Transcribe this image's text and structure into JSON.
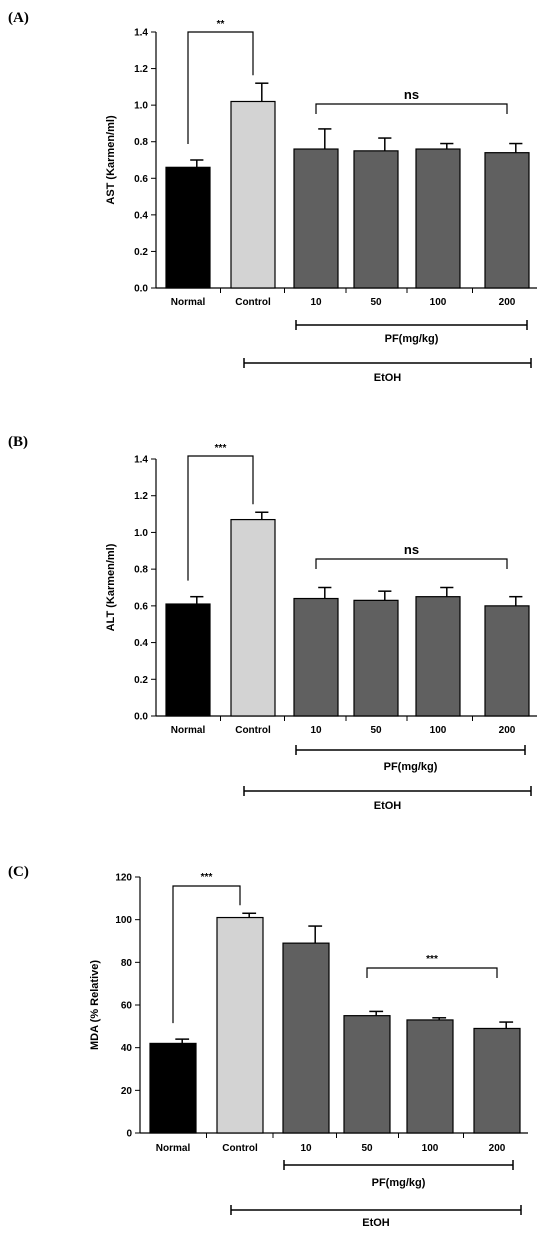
{
  "chart_data": [
    {
      "panel": "(A)",
      "type": "bar",
      "ylabel": "AST (Karmen/ml)",
      "ylim": [
        0,
        1.4
      ],
      "yticks": [
        "0.0",
        "0.2",
        "0.4",
        "0.6",
        "0.8",
        "1.0",
        "1.2",
        "1.4"
      ],
      "categories": [
        "Normal",
        "Control",
        "10",
        "50",
        "100",
        "200"
      ],
      "values": [
        0.66,
        1.02,
        0.76,
        0.75,
        0.76,
        0.74
      ],
      "errors": [
        0.04,
        0.1,
        0.11,
        0.07,
        0.03,
        0.05
      ],
      "colors": [
        "#000000",
        "#d3d3d3",
        "#606060",
        "#606060",
        "#606060",
        "#606060"
      ],
      "comparisons": [
        {
          "from": 0,
          "to": 1,
          "label": "**"
        },
        {
          "from": 2,
          "to": 5,
          "label": "ns"
        }
      ],
      "groups": [
        {
          "label": "PF(mg/kg)",
          "from": 2,
          "to": 5
        },
        {
          "label": "EtOH",
          "from": 1,
          "to": 5
        }
      ]
    },
    {
      "panel": "(B)",
      "type": "bar",
      "ylabel": "ALT (Karmen/ml)",
      "ylim": [
        0,
        1.4
      ],
      "yticks": [
        "0.0",
        "0.2",
        "0.4",
        "0.6",
        "0.8",
        "1.0",
        "1.2",
        "1.4"
      ],
      "categories": [
        "Normal",
        "Control",
        "10",
        "50",
        "100",
        "200"
      ],
      "values": [
        0.61,
        1.07,
        0.64,
        0.63,
        0.65,
        0.6
      ],
      "errors": [
        0.04,
        0.04,
        0.06,
        0.05,
        0.05,
        0.05
      ],
      "colors": [
        "#000000",
        "#d3d3d3",
        "#606060",
        "#606060",
        "#606060",
        "#606060"
      ],
      "comparisons": [
        {
          "from": 0,
          "to": 1,
          "label": "***"
        },
        {
          "from": 2,
          "to": 5,
          "label": "ns"
        }
      ],
      "groups": [
        {
          "label": "PF(mg/kg)",
          "from": 2,
          "to": 5
        },
        {
          "label": "EtOH",
          "from": 1,
          "to": 5
        }
      ]
    },
    {
      "panel": "(C)",
      "type": "bar",
      "ylabel": "MDA (% Relative)",
      "ylim": [
        0,
        120
      ],
      "yticks": [
        "0",
        "20",
        "40",
        "60",
        "80",
        "100",
        "120"
      ],
      "categories": [
        "Normal",
        "Control",
        "10",
        "50",
        "100",
        "200"
      ],
      "values": [
        42,
        101,
        89,
        55,
        53,
        49
      ],
      "errors": [
        2,
        2,
        8,
        2,
        1,
        3
      ],
      "colors": [
        "#000000",
        "#d3d3d3",
        "#606060",
        "#606060",
        "#606060",
        "#606060"
      ],
      "comparisons": [
        {
          "from": 0,
          "to": 1,
          "label": "***"
        },
        {
          "from": 3,
          "to": 5,
          "label": "***"
        }
      ],
      "groups": [
        {
          "label": "PF(mg/kg)",
          "from": 2,
          "to": 5
        },
        {
          "label": "EtOH",
          "from": 1,
          "to": 5
        }
      ]
    }
  ]
}
